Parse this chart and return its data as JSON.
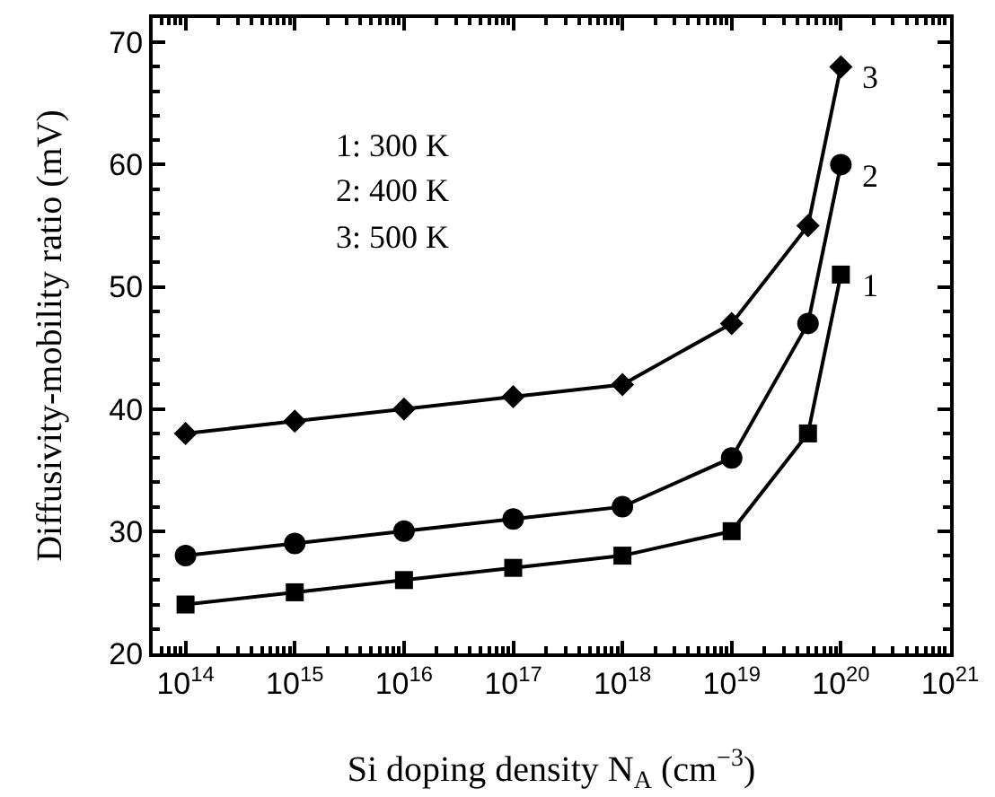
{
  "chart_data": {
    "type": "line",
    "xlabel": "Si doping density N$_{A}$ (cm$^{−3}$)",
    "ylabel": "Diffusivity-mobility ratio (mV)",
    "x": [
      100000000000000.0,
      1000000000000000.0,
      1e+16,
      1e+17,
      1e+18,
      1e+19,
      5e+19,
      1e+20
    ],
    "series": [
      {
        "name": "1",
        "color": "#000000",
        "marker": "square",
        "values": [
          24,
          25,
          26,
          27,
          28,
          30,
          38,
          51
        ]
      },
      {
        "name": "2",
        "color": "#000000",
        "marker": "circle",
        "values": [
          28,
          29,
          30,
          31,
          32,
          36,
          47,
          60
        ]
      },
      {
        "name": "3",
        "color": "#000000",
        "marker": "diamond",
        "values": [
          38,
          39,
          40,
          41,
          42,
          47,
          55,
          68
        ]
      }
    ],
    "annotations": [
      "1: 300 K",
      "2: 400 K",
      "3: 500 K"
    ],
    "log": "x",
    "xlim": [
      50000000000000.0,
      1e+21
    ],
    "xticks": [
      {
        "value": 100000000000000.0,
        "label": "10$^{14}$"
      },
      {
        "value": 1000000000000000.0,
        "label": "10$^{15}$"
      },
      {
        "value": 1e+16,
        "label": "10$^{16}$"
      },
      {
        "value": 1e+17,
        "label": "10$^{17}$"
      },
      {
        "value": 1e+18,
        "label": "10$^{18}$"
      },
      {
        "value": 1e+19,
        "label": "10$^{19}$"
      },
      {
        "value": 1e+20,
        "label": "10$^{20}$"
      },
      {
        "value": 1e+21,
        "label": "10$^{21}$"
      }
    ],
    "ylim": [
      20,
      72
    ],
    "yticks": [
      20,
      30,
      40,
      50,
      60,
      70
    ],
    "grid": false,
    "legend": "right",
    "line_style": "solid"
  }
}
